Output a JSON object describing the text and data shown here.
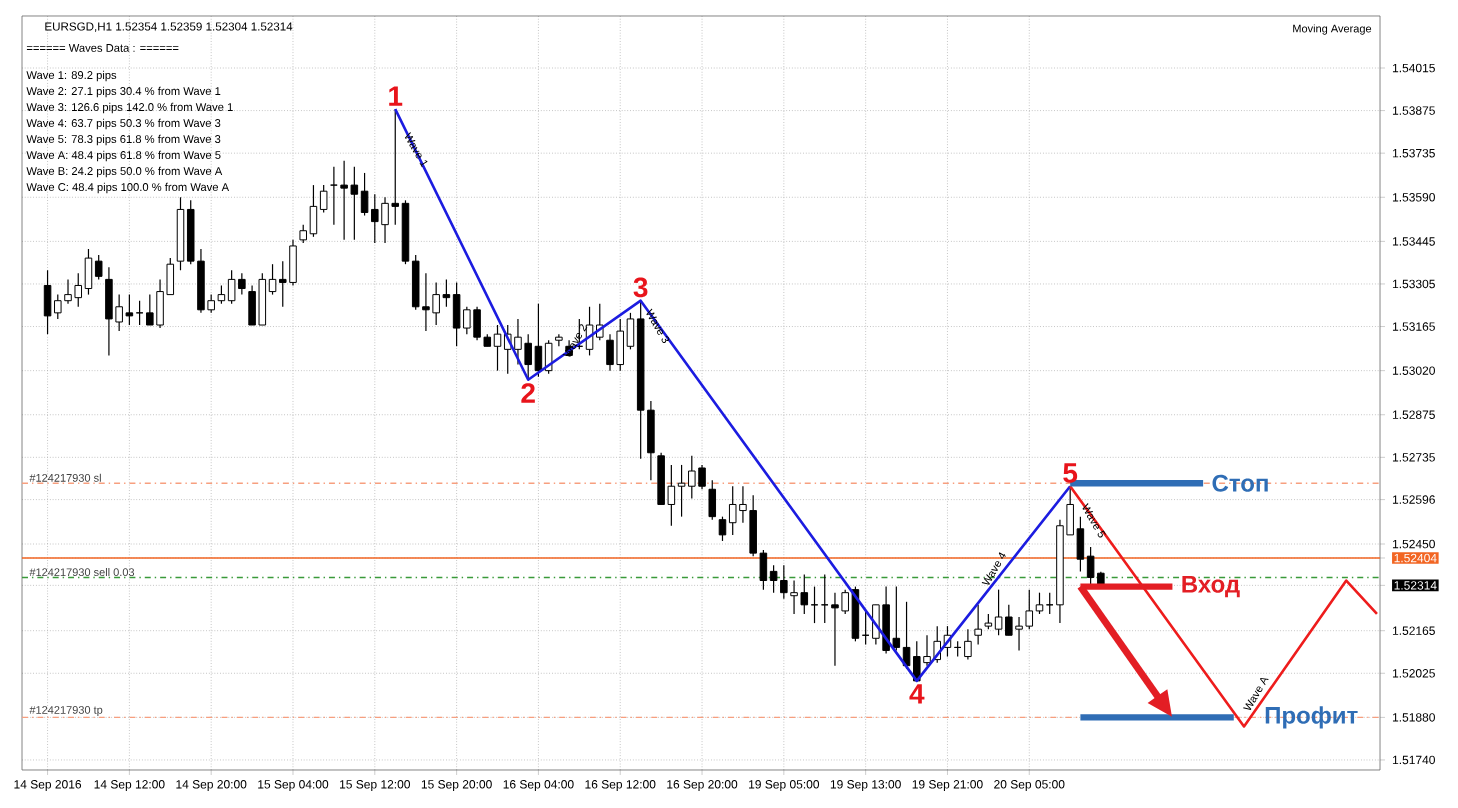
{
  "chart_data": {
    "type": "candlestick",
    "title": "EURSGD,H1  1.52354 1.52359 1.52304 1.52314",
    "categories": [
      "14 Sep 2016",
      null,
      null,
      null,
      null,
      null,
      null,
      null,
      "14 Sep 12:00",
      null,
      null,
      null,
      null,
      null,
      null,
      null,
      "14 Sep 20:00",
      null,
      null,
      null,
      null,
      null,
      null,
      null,
      "15 Sep 04:00",
      null,
      null,
      null,
      null,
      null,
      null,
      null,
      "15 Sep 12:00",
      null,
      null,
      null,
      null,
      null,
      null,
      null,
      "15 Sep 20:00",
      null,
      null,
      null,
      null,
      null,
      null,
      null,
      "16 Sep 04:00",
      null,
      null,
      null,
      null,
      null,
      null,
      null,
      "16 Sep 12:00",
      null,
      null,
      null,
      null,
      null,
      null,
      null,
      "16 Sep 20:00",
      null,
      null,
      null,
      null,
      null,
      null,
      null,
      "19 Sep 05:00",
      null,
      null,
      null,
      null,
      null,
      null,
      null,
      "19 Sep 13:00",
      null,
      null,
      null,
      null,
      null,
      null,
      null,
      "19 Sep 21:00",
      null,
      null,
      null,
      null,
      null,
      null,
      null,
      "20 Sep 05:00",
      null,
      null,
      null,
      null,
      null,
      null,
      null,
      null,
      null,
      null,
      null,
      null,
      null,
      null,
      null,
      null,
      null,
      null,
      null,
      null,
      null,
      null,
      null,
      null,
      null,
      null,
      null,
      null,
      null,
      null,
      null,
      null,
      null,
      null
    ],
    "ohlc": [
      [
        1.533,
        1.5335,
        1.5314,
        1.532
      ],
      [
        1.5321,
        1.5327,
        1.5319,
        1.5325
      ],
      [
        1.5325,
        1.5332,
        1.5324,
        1.5327
      ],
      [
        1.5326,
        1.5334,
        1.5323,
        1.533
      ],
      [
        1.5329,
        1.5342,
        1.5327,
        1.5339
      ],
      [
        1.5338,
        1.534,
        1.5332,
        1.5333
      ],
      [
        1.5332,
        1.5336,
        1.5307,
        1.5319
      ],
      [
        1.5318,
        1.5327,
        1.5315,
        1.5323
      ],
      [
        1.5321,
        1.5327,
        1.5317,
        1.532
      ],
      [
        1.5321,
        1.5325,
        1.5317,
        1.5321
      ],
      [
        1.5321,
        1.5327,
        1.5317,
        1.5317
      ],
      [
        1.5317,
        1.5332,
        1.5316,
        1.5328
      ],
      [
        1.5327,
        1.5339,
        1.5327,
        1.5337
      ],
      [
        1.5338,
        1.5359,
        1.5335,
        1.5355
      ],
      [
        1.5355,
        1.5358,
        1.5337,
        1.5338
      ],
      [
        1.5338,
        1.5342,
        1.5321,
        1.5322
      ],
      [
        1.5322,
        1.5327,
        1.5321,
        1.5325
      ],
      [
        1.5325,
        1.533,
        1.5324,
        1.5327
      ],
      [
        1.5325,
        1.5335,
        1.5324,
        1.5332
      ],
      [
        1.5332,
        1.5334,
        1.5327,
        1.5329
      ],
      [
        1.5328,
        1.533,
        1.5317,
        1.5317
      ],
      [
        1.5317,
        1.5334,
        1.5317,
        1.5332
      ],
      [
        1.5328,
        1.5337,
        1.5327,
        1.5332
      ],
      [
        1.5332,
        1.5338,
        1.5323,
        1.5331
      ],
      [
        1.5331,
        1.5345,
        1.533,
        1.5343
      ],
      [
        1.5345,
        1.535,
        1.5344,
        1.5348
      ],
      [
        1.5347,
        1.5363,
        1.5346,
        1.5356
      ],
      [
        1.5355,
        1.5363,
        1.5354,
        1.5361
      ],
      [
        1.5363,
        1.5369,
        1.535,
        1.5363
      ],
      [
        1.5363,
        1.5371,
        1.5345,
        1.5362
      ],
      [
        1.5363,
        1.5369,
        1.5345,
        1.536
      ],
      [
        1.5361,
        1.5367,
        1.5353,
        1.5354
      ],
      [
        1.5355,
        1.536,
        1.5344,
        1.5351
      ],
      [
        1.535,
        1.5359,
        1.5344,
        1.5357
      ],
      [
        1.5357,
        1.5388,
        1.535,
        1.5356
      ],
      [
        1.5357,
        1.5358,
        1.5337,
        1.5338
      ],
      [
        1.5338,
        1.534,
        1.5322,
        1.5323
      ],
      [
        1.5323,
        1.5334,
        1.5315,
        1.5322
      ],
      [
        1.5321,
        1.5331,
        1.5317,
        1.5327
      ],
      [
        1.5327,
        1.5332,
        1.5323,
        1.5326
      ],
      [
        1.5327,
        1.5331,
        1.531,
        1.5316
      ],
      [
        1.5316,
        1.5323,
        1.5314,
        1.5322
      ],
      [
        1.5322,
        1.5323,
        1.5312,
        1.5313
      ],
      [
        1.5313,
        1.5314,
        1.531,
        1.531
      ],
      [
        1.531,
        1.5317,
        1.5302,
        1.5314
      ],
      [
        1.5309,
        1.5317,
        1.5301,
        1.5314
      ],
      [
        1.5309,
        1.5319,
        1.5304,
        1.5313
      ],
      [
        1.5311,
        1.5314,
        1.5299,
        1.5304
      ],
      [
        1.531,
        1.5324,
        1.53,
        1.5302
      ],
      [
        1.5302,
        1.5312,
        1.5301,
        1.5311
      ],
      [
        1.5312,
        1.5314,
        1.531,
        1.5313
      ],
      [
        1.531,
        1.5312,
        1.5307,
        1.5307
      ],
      [
        1.531,
        1.5319,
        1.5309,
        1.531
      ],
      [
        1.5309,
        1.5323,
        1.5307,
        1.5317
      ],
      [
        1.5313,
        1.5324,
        1.5312,
        1.5317
      ],
      [
        1.5312,
        1.5314,
        1.5302,
        1.5304
      ],
      [
        1.5304,
        1.5319,
        1.5302,
        1.5315
      ],
      [
        1.531,
        1.5321,
        1.5309,
        1.5319
      ],
      [
        1.5319,
        1.5325,
        1.5273,
        1.5289
      ],
      [
        1.5289,
        1.5292,
        1.5266,
        1.5275
      ],
      [
        1.5274,
        1.5275,
        1.5258,
        1.5258
      ],
      [
        1.5258,
        1.5271,
        1.5251,
        1.5264
      ],
      [
        1.5264,
        1.5271,
        1.5254,
        1.5265
      ],
      [
        1.5264,
        1.5274,
        1.526,
        1.5269
      ],
      [
        1.527,
        1.5271,
        1.5263,
        1.5264
      ],
      [
        1.5263,
        1.5266,
        1.5253,
        1.5254
      ],
      [
        1.5253,
        1.5254,
        1.5246,
        1.5248
      ],
      [
        1.5252,
        1.5264,
        1.5248,
        1.5258
      ],
      [
        1.5256,
        1.5264,
        1.5252,
        1.5258
      ],
      [
        1.5256,
        1.5261,
        1.5241,
        1.5242
      ],
      [
        1.5242,
        1.5243,
        1.523,
        1.5233
      ],
      [
        1.5236,
        1.5238,
        1.5229,
        1.5233
      ],
      [
        1.5233,
        1.5238,
        1.5227,
        1.5229
      ],
      [
        1.5228,
        1.5233,
        1.5222,
        1.5229
      ],
      [
        1.5229,
        1.5235,
        1.5222,
        1.5225
      ],
      [
        1.5225,
        1.5231,
        1.5219,
        1.5225
      ],
      [
        1.5225,
        1.5235,
        1.5219,
        1.5225
      ],
      [
        1.5225,
        1.5229,
        1.5205,
        1.5224
      ],
      [
        1.5223,
        1.523,
        1.5222,
        1.5229
      ],
      [
        1.523,
        1.5231,
        1.5213,
        1.5214
      ],
      [
        1.5215,
        1.5223,
        1.5212,
        1.5215
      ],
      [
        1.5214,
        1.5225,
        1.5212,
        1.5225
      ],
      [
        1.5225,
        1.5231,
        1.5209,
        1.521
      ],
      [
        1.5214,
        1.5231,
        1.521,
        1.5211
      ],
      [
        1.5211,
        1.5226,
        1.5204,
        1.5205
      ],
      [
        1.5208,
        1.5213,
        1.52,
        1.52
      ],
      [
        1.5206,
        1.5215,
        1.5205,
        1.5208
      ],
      [
        1.5207,
        1.5218,
        1.5206,
        1.5213
      ],
      [
        1.5211,
        1.5218,
        1.5208,
        1.5215
      ],
      [
        1.5211,
        1.5213,
        1.5208,
        1.5211
      ],
      [
        1.5208,
        1.5217,
        1.5207,
        1.5213
      ],
      [
        1.5215,
        1.5225,
        1.5212,
        1.5217
      ],
      [
        1.5218,
        1.5222,
        1.5217,
        1.5219
      ],
      [
        1.5217,
        1.523,
        1.5215,
        1.5221
      ],
      [
        1.5221,
        1.5225,
        1.5215,
        1.5215
      ],
      [
        1.5217,
        1.5221,
        1.521,
        1.5218
      ],
      [
        1.5218,
        1.523,
        1.5217,
        1.5223
      ],
      [
        1.5223,
        1.5229,
        1.5222,
        1.5225
      ],
      [
        1.5225,
        1.5229,
        1.5222,
        1.5225
      ],
      [
        1.5225,
        1.5253,
        1.5219,
        1.5251
      ],
      [
        1.5248,
        1.5264,
        1.5248,
        1.5258
      ],
      [
        1.525,
        1.5254,
        1.5236,
        1.524
      ],
      [
        1.5241,
        1.5244,
        1.5231,
        1.5234
      ],
      [
        1.52354,
        1.52359,
        1.52304,
        1.52314
      ],
      null,
      null,
      null,
      null,
      null,
      null,
      null,
      null,
      null,
      null,
      null,
      null,
      null,
      null,
      null,
      null,
      null,
      null,
      null,
      null,
      null,
      null,
      null,
      null,
      null,
      null,
      null
    ],
    "series": [
      {
        "type": "line",
        "color": "#1c1ce0",
        "values": [
          null,
          null,
          null,
          null,
          null,
          null,
          null,
          null,
          null,
          null,
          null,
          null,
          null,
          null,
          null,
          null,
          null,
          null,
          null,
          null,
          null,
          null,
          null,
          null,
          null,
          null,
          null,
          null,
          null,
          null,
          null,
          null,
          null,
          null,
          1.5388,
          null,
          null,
          null,
          null,
          null,
          null,
          null,
          null,
          null,
          null,
          null,
          null,
          1.5299,
          null,
          null,
          null,
          null,
          null,
          null,
          null,
          null,
          null,
          null,
          1.5325,
          null,
          null,
          null,
          null,
          null,
          null,
          null,
          null,
          null,
          null,
          null,
          null,
          null,
          null,
          null,
          null,
          null,
          null,
          null,
          null,
          null,
          null,
          null,
          null,
          null,
          null,
          1.52,
          null,
          null,
          null,
          null,
          null,
          null,
          null,
          null,
          null,
          null,
          null,
          null,
          null,
          null,
          1.5264,
          null,
          null,
          null,
          null,
          null,
          null,
          null,
          null,
          null,
          null,
          null,
          null,
          null,
          null,
          null,
          null,
          null,
          null,
          null,
          null,
          null,
          null,
          null,
          null,
          null,
          null,
          null,
          null,
          null,
          null
        ]
      },
      {
        "type": "line",
        "color": "#ee1c1c",
        "values": [
          null,
          null,
          null,
          null,
          null,
          null,
          null,
          null,
          null,
          null,
          null,
          null,
          null,
          null,
          null,
          null,
          null,
          null,
          null,
          null,
          null,
          null,
          null,
          null,
          null,
          null,
          null,
          null,
          null,
          null,
          null,
          null,
          null,
          null,
          null,
          null,
          null,
          null,
          null,
          null,
          null,
          null,
          null,
          null,
          null,
          null,
          null,
          null,
          null,
          null,
          null,
          null,
          null,
          null,
          null,
          null,
          null,
          null,
          null,
          null,
          null,
          null,
          null,
          null,
          null,
          null,
          null,
          null,
          null,
          null,
          null,
          null,
          null,
          null,
          null,
          null,
          null,
          null,
          null,
          null,
          null,
          null,
          null,
          null,
          null,
          null,
          null,
          null,
          null,
          null,
          null,
          null,
          null,
          null,
          null,
          null,
          null,
          null,
          null,
          null,
          1.5264,
          null,
          null,
          null,
          null,
          null,
          null,
          null,
          null,
          null,
          null,
          null,
          null,
          null,
          null,
          null,
          null,
          1.5185,
          null,
          null,
          null,
          null,
          null,
          null,
          null,
          null,
          null,
          1.5233,
          null,
          null,
          1.5222
        ]
      },
      {
        "type": "line",
        "name": "Стоп",
        "color": "#2f6db5",
        "values": [
          null,
          null,
          null,
          null,
          null,
          null,
          null,
          null,
          null,
          null,
          null,
          null,
          null,
          null,
          null,
          null,
          null,
          null,
          null,
          null,
          null,
          null,
          null,
          null,
          null,
          null,
          null,
          null,
          null,
          null,
          null,
          null,
          null,
          null,
          null,
          null,
          null,
          null,
          null,
          null,
          null,
          null,
          null,
          null,
          null,
          null,
          null,
          null,
          null,
          null,
          null,
          null,
          null,
          null,
          null,
          null,
          null,
          null,
          null,
          null,
          null,
          null,
          null,
          null,
          null,
          null,
          null,
          null,
          null,
          null,
          null,
          null,
          null,
          null,
          null,
          null,
          null,
          null,
          null,
          null,
          null,
          null,
          null,
          null,
          null,
          null,
          null,
          null,
          null,
          null,
          null,
          null,
          null,
          null,
          null,
          null,
          null,
          null,
          null,
          null,
          1.5265,
          null,
          null,
          null,
          null,
          null,
          null,
          null,
          null,
          null,
          null,
          null,
          null,
          1.5265,
          null,
          null,
          null,
          null,
          null,
          null,
          null,
          null,
          null,
          null,
          null,
          null,
          null,
          null,
          null,
          null,
          null
        ]
      },
      {
        "type": "line",
        "name": "Вход",
        "color": "#e31e24",
        "values": [
          null,
          null,
          null,
          null,
          null,
          null,
          null,
          null,
          null,
          null,
          null,
          null,
          null,
          null,
          null,
          null,
          null,
          null,
          null,
          null,
          null,
          null,
          null,
          null,
          null,
          null,
          null,
          null,
          null,
          null,
          null,
          null,
          null,
          null,
          null,
          null,
          null,
          null,
          null,
          null,
          null,
          null,
          null,
          null,
          null,
          null,
          null,
          null,
          null,
          null,
          null,
          null,
          null,
          null,
          null,
          null,
          null,
          null,
          null,
          null,
          null,
          null,
          null,
          null,
          null,
          null,
          null,
          null,
          null,
          null,
          null,
          null,
          null,
          null,
          null,
          null,
          null,
          null,
          null,
          null,
          null,
          null,
          null,
          null,
          null,
          null,
          null,
          null,
          null,
          null,
          null,
          null,
          null,
          null,
          null,
          null,
          null,
          null,
          null,
          null,
          null,
          1.5231,
          null,
          null,
          null,
          null,
          null,
          null,
          null,
          null,
          1.5231,
          null,
          null,
          null,
          null,
          null,
          null,
          null,
          null,
          null,
          null,
          null,
          null,
          null,
          null,
          null,
          null,
          null,
          null,
          null,
          null
        ]
      },
      {
        "type": "line",
        "name": "Профит",
        "color": "#2f6db5",
        "values": [
          null,
          null,
          null,
          null,
          null,
          null,
          null,
          null,
          null,
          null,
          null,
          null,
          null,
          null,
          null,
          null,
          null,
          null,
          null,
          null,
          null,
          null,
          null,
          null,
          null,
          null,
          null,
          null,
          null,
          null,
          null,
          null,
          null,
          null,
          null,
          null,
          null,
          null,
          null,
          null,
          null,
          null,
          null,
          null,
          null,
          null,
          null,
          null,
          null,
          null,
          null,
          null,
          null,
          null,
          null,
          null,
          null,
          null,
          null,
          null,
          null,
          null,
          null,
          null,
          null,
          null,
          null,
          null,
          null,
          null,
          null,
          null,
          null,
          null,
          null,
          null,
          null,
          null,
          null,
          null,
          null,
          null,
          null,
          null,
          null,
          null,
          null,
          null,
          null,
          null,
          null,
          null,
          null,
          null,
          null,
          null,
          null,
          null,
          null,
          null,
          null,
          1.5188,
          null,
          null,
          null,
          null,
          null,
          null,
          null,
          null,
          null,
          null,
          null,
          null,
          null,
          null,
          1.5188,
          null,
          null,
          null,
          null,
          null,
          null,
          null,
          null,
          null,
          null,
          null,
          null,
          null,
          null
        ]
      }
    ],
    "ref_lines": [
      {
        "axis": "y",
        "value": 1.5265,
        "label": "#124217930 sl",
        "color": "#f79f7f",
        "line_style": "dashed"
      },
      {
        "axis": "y",
        "value": 1.52404,
        "color": "#f26522",
        "line_style": "solid"
      },
      {
        "axis": "y",
        "value": 1.5234,
        "label": "#124217930 sell 0.03",
        "color": "#3a9a3a",
        "line_style": "dashed"
      },
      {
        "axis": "y",
        "value": 1.5188,
        "label": "#124217930 tp",
        "color": "#f79f7f",
        "line_style": "dashed"
      }
    ],
    "annotations": [
      "====== Waves Data : ======",
      "Wave 1: 89.2 pips",
      "Wave 2: 27.1 pips 30.4 % from Wave 1",
      "Wave 3: 126.6 pips 142.0 % from Wave 1",
      "Wave 4: 63.7 pips 50.3 % from Wave 3",
      "Wave 5: 78.3 pips 61.8 % from Wave 3",
      "Wave A: 48.4 pips 61.8 % from Wave 5",
      "Wave B: 24.2 pips 50.0 % from Wave A",
      "Wave C: 48.4 pips 100.0 % from Wave A",
      "Moving Average",
      {
        "text": "1",
        "y": 1.5388
      },
      {
        "text": "2",
        "y": 1.5299
      },
      {
        "text": "3",
        "y": 1.5325
      },
      {
        "text": "4",
        "y": 1.52
      },
      {
        "text": "5",
        "y": 1.5264
      },
      {
        "text": "Wave 1",
        "y": 1.5378
      },
      {
        "text": "Wave 2",
        "y": 1.5313
      },
      {
        "text": "Wave 3",
        "y": 1.532
      },
      {
        "text": "Wave 4",
        "y": 1.5238
      },
      {
        "text": "Wave 5",
        "y": 1.5256
      },
      {
        "text": "Wave A",
        "y": 1.5197
      }
    ],
    "ylim": [
      1.51707,
      1.54186
    ],
    "yticks": [
      {
        "value": 1.54015,
        "label": "1.54015"
      },
      {
        "value": 1.53875,
        "label": "1.53875"
      },
      {
        "value": 1.53735,
        "label": "1.53735"
      },
      {
        "value": 1.5359,
        "label": "1.53590"
      },
      {
        "value": 1.53445,
        "label": "1.53445"
      },
      {
        "value": 1.53305,
        "label": "1.53305"
      },
      {
        "value": 1.53165,
        "label": "1.53165"
      },
      {
        "value": 1.5302,
        "label": "1.53020"
      },
      {
        "value": 1.52875,
        "label": "1.52875"
      },
      {
        "value": 1.52735,
        "label": "1.52735"
      },
      {
        "value": 1.52596,
        "label": "1.52596"
      },
      {
        "value": 1.5245,
        "label": "1.52450"
      },
      {
        "value": 1.52404,
        "label": "1.52404"
      },
      {
        "value": 1.52314,
        "label": "1.52314"
      },
      {
        "value": 1.52165,
        "label": "1.52165"
      },
      {
        "value": 1.52025,
        "label": "1.52025"
      },
      {
        "value": 1.5188,
        "label": "1.51880"
      },
      {
        "value": 1.5174,
        "label": "1.51740"
      }
    ],
    "grid": true
  }
}
